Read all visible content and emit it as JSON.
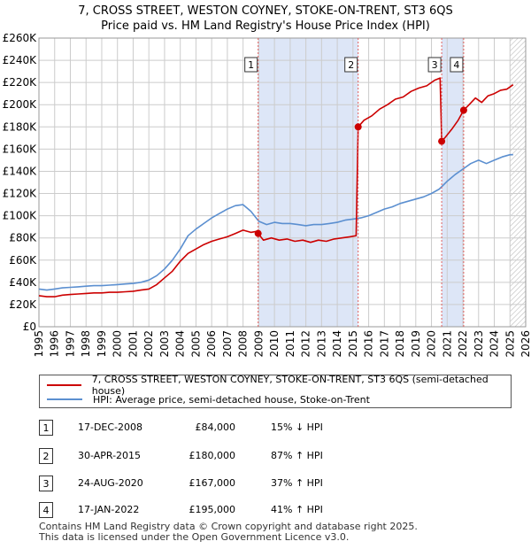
{
  "title_line1": "7, CROSS STREET, WESTON COYNEY, STOKE-ON-TRENT, ST3 6QS",
  "title_line2": "Price paid vs. HM Land Registry's House Price Index (HPI)",
  "legend": {
    "property_label": "7, CROSS STREET, WESTON COYNEY, STOKE-ON-TRENT, ST3 6QS (semi-detached house)",
    "hpi_label": "HPI: Average price, semi-detached house, Stoke-on-Trent"
  },
  "transactions": [
    {
      "num": "1",
      "date": "17-DEC-2008",
      "price": "£84,000",
      "hpi": "15% ↓ HPI"
    },
    {
      "num": "2",
      "date": "30-APR-2015",
      "price": "£180,000",
      "hpi": "87% ↑ HPI"
    },
    {
      "num": "3",
      "date": "24-AUG-2020",
      "price": "£167,000",
      "hpi": "37% ↑ HPI"
    },
    {
      "num": "4",
      "date": "17-JAN-2022",
      "price": "£195,000",
      "hpi": "41% ↑ HPI"
    }
  ],
  "footer_line1": "Contains HM Land Registry data © Crown copyright and database right 2025.",
  "footer_line2": "This data is licensed under the Open Government Licence v3.0.",
  "colors": {
    "property_line": "#cc0000",
    "hpi_line": "#5b8fd0",
    "shade": "#dde6f7",
    "grid": "#cccccc",
    "vline": "#e06060"
  },
  "chart_data": {
    "type": "line",
    "xlabel": "",
    "ylabel": "",
    "xlim": [
      1995,
      2026
    ],
    "ylim": [
      0,
      260000
    ],
    "x_ticks": [
      "1995",
      "1996",
      "1997",
      "1998",
      "1999",
      "2000",
      "2001",
      "2002",
      "2003",
      "2004",
      "2005",
      "2006",
      "2007",
      "2008",
      "2009",
      "2010",
      "2011",
      "2012",
      "2013",
      "2014",
      "2015",
      "2016",
      "2017",
      "2018",
      "2019",
      "2020",
      "2021",
      "2022",
      "2023",
      "2024",
      "2025",
      "2026"
    ],
    "y_ticks": [
      {
        "value": 0,
        "label": "£0"
      },
      {
        "value": 20000,
        "label": "£20K"
      },
      {
        "value": 40000,
        "label": "£40K"
      },
      {
        "value": 60000,
        "label": "£60K"
      },
      {
        "value": 80000,
        "label": "£80K"
      },
      {
        "value": 100000,
        "label": "£100K"
      },
      {
        "value": 120000,
        "label": "£120K"
      },
      {
        "value": 140000,
        "label": "£140K"
      },
      {
        "value": 160000,
        "label": "£160K"
      },
      {
        "value": 180000,
        "label": "£180K"
      },
      {
        "value": 200000,
        "label": "£200K"
      },
      {
        "value": 220000,
        "label": "£220K"
      },
      {
        "value": 240000,
        "label": "£240K"
      },
      {
        "value": 260000,
        "label": "£260K"
      }
    ],
    "shaded_ranges": [
      [
        2008.96,
        2015.33
      ],
      [
        2020.65,
        2022.05
      ]
    ],
    "projection_start": 2025.0,
    "markers": [
      {
        "num": "1",
        "x": 2008.96,
        "y": 84000
      },
      {
        "num": "2",
        "x": 2015.33,
        "y": 180000
      },
      {
        "num": "3",
        "x": 2020.65,
        "y": 167000
      },
      {
        "num": "4",
        "x": 2022.05,
        "y": 195000
      }
    ],
    "series": [
      {
        "name": "7, CROSS STREET, WESTON COYNEY, STOKE-ON-TRENT, ST3 6QS (semi-detached house)",
        "x": [
          1995,
          1995.5,
          1996,
          1996.5,
          1997,
          1997.5,
          1998,
          1998.5,
          1999,
          1999.5,
          2000,
          2000.5,
          2001,
          2001.5,
          2002,
          2002.5,
          2003,
          2003.5,
          2004,
          2004.5,
          2005,
          2005.5,
          2006,
          2006.5,
          2007,
          2007.5,
          2008,
          2008.5,
          2008.9,
          2008.96,
          2009.3,
          2009.8,
          2010.3,
          2010.8,
          2011.3,
          2011.8,
          2012.3,
          2012.8,
          2013.3,
          2013.8,
          2014.3,
          2014.8,
          2015.2,
          2015.33,
          2015.7,
          2016.2,
          2016.7,
          2017.2,
          2017.7,
          2018.2,
          2018.7,
          2019.2,
          2019.7,
          2020.2,
          2020.55,
          2020.65,
          2020.9,
          2021.3,
          2021.7,
          2022.05,
          2022.4,
          2022.8,
          2023.2,
          2023.6,
          2024.0,
          2024.4,
          2024.8,
          2025.2
        ],
        "values": [
          28000,
          27000,
          27000,
          28500,
          29000,
          29500,
          30000,
          30500,
          30500,
          31000,
          31000,
          31500,
          32000,
          33000,
          34000,
          38000,
          44000,
          50000,
          59000,
          66000,
          70000,
          74000,
          77000,
          79000,
          81000,
          84000,
          87000,
          85000,
          86000,
          84000,
          78000,
          80000,
          78000,
          79000,
          77000,
          78000,
          76000,
          78000,
          77000,
          79000,
          80000,
          81000,
          82000,
          180000,
          186000,
          190000,
          196000,
          200000,
          205000,
          207000,
          212000,
          215000,
          217000,
          222000,
          224000,
          167000,
          171000,
          178000,
          186000,
          195000,
          200000,
          206000,
          202000,
          208000,
          210000,
          213000,
          214000,
          218000
        ]
      },
      {
        "name": "HPI: Average price, semi-detached house, Stoke-on-Trent",
        "x": [
          1995,
          1995.5,
          1996,
          1996.5,
          1997,
          1997.5,
          1998,
          1998.5,
          1999,
          1999.5,
          2000,
          2000.5,
          2001,
          2001.5,
          2002,
          2002.5,
          2003,
          2003.5,
          2004,
          2004.5,
          2005,
          2005.5,
          2006,
          2006.5,
          2007,
          2007.5,
          2008,
          2008.5,
          2009,
          2009.5,
          2010,
          2010.5,
          2011,
          2011.5,
          2012,
          2012.5,
          2013,
          2013.5,
          2014,
          2014.5,
          2015,
          2015.5,
          2016,
          2016.5,
          2017,
          2017.5,
          2018,
          2018.5,
          2019,
          2019.5,
          2020,
          2020.5,
          2021,
          2021.5,
          2022,
          2022.5,
          2023,
          2023.5,
          2024,
          2024.5,
          2025,
          2025.2
        ],
        "values": [
          34000,
          33000,
          34000,
          35000,
          35500,
          36000,
          36500,
          37000,
          37000,
          37500,
          38000,
          38500,
          39000,
          40000,
          42000,
          46000,
          52000,
          60000,
          70000,
          82000,
          88000,
          93000,
          98000,
          102000,
          106000,
          109000,
          110000,
          104000,
          95000,
          92000,
          94000,
          93000,
          93000,
          92000,
          91000,
          92000,
          92000,
          93000,
          94000,
          96000,
          97000,
          98000,
          100000,
          103000,
          106000,
          108000,
          111000,
          113000,
          115000,
          117000,
          120000,
          124000,
          131000,
          137000,
          142000,
          147000,
          150000,
          147000,
          150000,
          153000,
          155000,
          155000
        ]
      }
    ]
  }
}
